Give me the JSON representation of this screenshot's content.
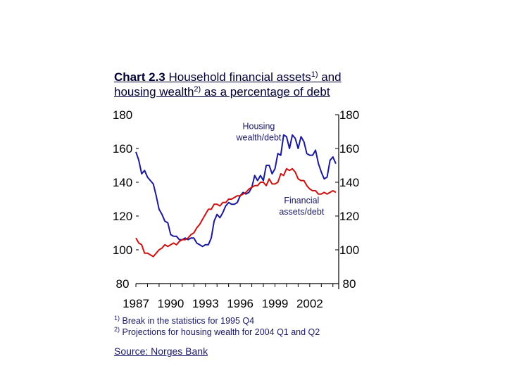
{
  "title": {
    "prefix": "Chart 2.3",
    "line1_text": " Household financial assets",
    "line1_sup": "1)",
    "line1_tail": " and",
    "line2_text": "housing wealth",
    "line2_sup": "2)",
    "line2_tail": " as a percentage of debt"
  },
  "chart_data": {
    "type": "line",
    "title": "Chart 2.3 Household financial assets and housing wealth as a percentage of debt",
    "xlabel": "",
    "ylabel": "",
    "x_ticks": [
      "1987",
      "1990",
      "1993",
      "1996",
      "1999",
      "2002"
    ],
    "x_range": [
      1987,
      2004.5
    ],
    "ylim": [
      80,
      180
    ],
    "y_ticks_left": [
      180,
      160,
      140,
      120,
      100,
      80
    ],
    "y_ticks_right": [
      180,
      160,
      140,
      120,
      100,
      80
    ],
    "grid": false,
    "series": [
      {
        "name": "Housing wealth/debt",
        "color": "#1a1a9a",
        "x": [
          1987.0,
          1987.25,
          1987.5,
          1987.75,
          1988.0,
          1988.25,
          1988.5,
          1988.75,
          1989.0,
          1989.25,
          1989.5,
          1989.75,
          1990.0,
          1990.25,
          1990.5,
          1990.75,
          1991.0,
          1991.25,
          1991.5,
          1991.75,
          1992.0,
          1992.25,
          1992.5,
          1992.75,
          1993.0,
          1993.25,
          1993.5,
          1993.75,
          1994.0,
          1994.25,
          1994.5,
          1994.75,
          1995.0,
          1995.25,
          1995.5,
          1995.75,
          1996.0,
          1996.25,
          1996.5,
          1996.75,
          1997.0,
          1997.25,
          1997.5,
          1997.75,
          1998.0,
          1998.25,
          1998.5,
          1998.75,
          1999.0,
          1999.25,
          1999.5,
          1999.75,
          2000.0,
          2000.25,
          2000.5,
          2000.75,
          2001.0,
          2001.25,
          2001.5,
          2001.75,
          2002.0,
          2002.25,
          2002.5,
          2002.75,
          2003.0,
          2003.25,
          2003.5,
          2003.75,
          2004.0,
          2004.25
        ],
        "values": [
          158,
          153,
          145,
          147,
          143,
          141,
          139,
          132,
          124,
          121,
          117,
          116,
          109,
          108,
          108,
          106,
          106,
          107,
          106,
          107,
          107,
          104,
          103,
          102,
          103,
          103,
          107,
          117,
          121,
          119,
          122,
          126,
          128,
          127,
          127,
          128,
          132,
          134,
          133,
          134,
          137,
          144,
          141,
          144,
          141,
          150,
          150,
          145,
          148,
          157,
          156,
          168,
          167,
          160,
          168,
          166,
          160,
          167,
          164,
          157,
          156,
          156,
          159,
          151,
          146,
          142,
          143,
          153,
          155,
          151
        ],
        "label": "Housing\nwealth/debt"
      },
      {
        "name": "Financial assets/debt",
        "color": "#cc1111",
        "x": [
          1987.0,
          1987.25,
          1987.5,
          1987.75,
          1988.0,
          1988.25,
          1988.5,
          1988.75,
          1989.0,
          1989.25,
          1989.5,
          1989.75,
          1990.0,
          1990.25,
          1990.5,
          1990.75,
          1991.0,
          1991.25,
          1991.5,
          1991.75,
          1992.0,
          1992.25,
          1992.5,
          1992.75,
          1993.0,
          1993.25,
          1993.5,
          1993.75,
          1994.0,
          1994.25,
          1994.5,
          1994.75,
          1995.0,
          1995.25,
          1995.5,
          1995.75,
          1996.0,
          1996.25,
          1996.5,
          1996.75,
          1997.0,
          1997.25,
          1997.5,
          1997.75,
          1998.0,
          1998.25,
          1998.5,
          1998.75,
          1999.0,
          1999.25,
          1999.5,
          1999.75,
          2000.0,
          2000.25,
          2000.5,
          2000.75,
          2001.0,
          2001.25,
          2001.5,
          2001.75,
          2002.0,
          2002.25,
          2002.5,
          2002.75,
          2003.0,
          2003.25,
          2003.5,
          2003.75,
          2004.0,
          2004.25
        ],
        "values": [
          107,
          104,
          103,
          98,
          98,
          97,
          96,
          98,
          100,
          101,
          103,
          102,
          103,
          104,
          103,
          105,
          106,
          106,
          107,
          109,
          110,
          113,
          115,
          118,
          121,
          124,
          124,
          127,
          127,
          126,
          128,
          128,
          130,
          130,
          131,
          132,
          132,
          133,
          134,
          136,
          137,
          138,
          138,
          140,
          140,
          138,
          142,
          139,
          139,
          140,
          145,
          144,
          148,
          147,
          148,
          146,
          142,
          141,
          141,
          138,
          136,
          135,
          135,
          133,
          133,
          134,
          133,
          134,
          135,
          134
        ],
        "label": "Financial\nassets/debt"
      }
    ],
    "annotations": [
      {
        "text_lines": [
          "Housing",
          "wealth/debt"
        ],
        "at": [
          1997.6,
          171.5
        ]
      },
      {
        "text_lines": [
          "Financial",
          "assets/debt"
        ],
        "at": [
          2001.3,
          127.5
        ]
      }
    ]
  },
  "footnotes": [
    {
      "marker": "1)",
      "text": " Break in the statistics for 1995 Q4"
    },
    {
      "marker": "2)",
      "text": " Projections for housing wealth for 2004 Q1 and Q2"
    }
  ],
  "source": "Source: Norges Bank"
}
